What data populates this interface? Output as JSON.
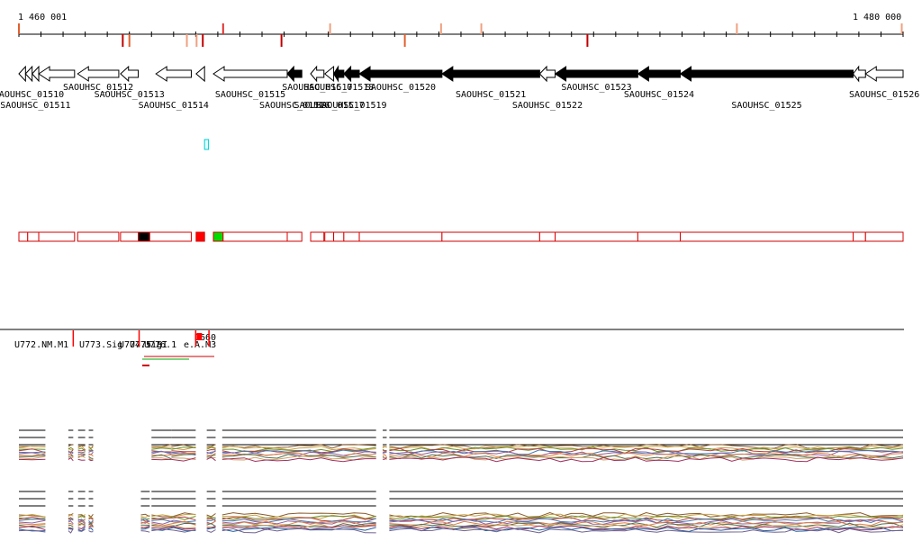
{
  "ruler": {
    "start_label": "1 460 001",
    "end_label": "1 480 000",
    "start": 1460001,
    "end": 1480000
  },
  "colors": {
    "gene_fill": "#000000",
    "gene_outline": "#000000",
    "feature_red": "#d40000",
    "feature_green": "#00dd00",
    "probe_cyan": "#00cccc",
    "marker_red": "#ff0000"
  },
  "ruler_marks": [
    {
      "pos": 1460001,
      "color": "#e06030",
      "dir": "up"
    },
    {
      "pos": 1462350,
      "color": "#c00000",
      "dir": "down"
    },
    {
      "pos": 1462500,
      "color": "#e06030",
      "dir": "down"
    },
    {
      "pos": 1463800,
      "color": "#f0a080",
      "dir": "down"
    },
    {
      "pos": 1464020,
      "color": "#f0a080",
      "dir": "down"
    },
    {
      "pos": 1464160,
      "color": "#c00000",
      "dir": "down"
    },
    {
      "pos": 1464620,
      "color": "#e03030",
      "dir": "up"
    },
    {
      "pos": 1465940,
      "color": "#c00000",
      "dir": "down"
    },
    {
      "pos": 1467040,
      "color": "#f0a080",
      "dir": "up"
    },
    {
      "pos": 1468730,
      "color": "#e06030",
      "dir": "down"
    },
    {
      "pos": 1469550,
      "color": "#f0a080",
      "dir": "up"
    },
    {
      "pos": 1470460,
      "color": "#f0a080",
      "dir": "up"
    },
    {
      "pos": 1472860,
      "color": "#c00000",
      "dir": "down"
    },
    {
      "pos": 1476240,
      "color": "#f0a080",
      "dir": "up"
    },
    {
      "pos": 1479970,
      "color": "#f0a080",
      "dir": "up"
    }
  ],
  "genes": [
    {
      "name": "",
      "start": 1460001,
      "end": 1460150,
      "strand": "+",
      "filled": false
    },
    {
      "name": "SAOUHSC_01510",
      "start": 1460150,
      "end": 1460300,
      "strand": "-",
      "filled": false,
      "label_row": 0
    },
    {
      "name": "SAOUHSC_01511",
      "start": 1460300,
      "end": 1460450,
      "strand": "-",
      "filled": false,
      "label_row": 1
    },
    {
      "name": "",
      "start": 1460450,
      "end": 1461260,
      "strand": "-",
      "filled": false
    },
    {
      "name": "SAOUHSC_01512",
      "start": 1461330,
      "end": 1462260,
      "strand": "-",
      "filled": false,
      "label_row": -1
    },
    {
      "name": "SAOUHSC_01513",
      "start": 1462300,
      "end": 1462700,
      "strand": "-",
      "filled": false,
      "label_row": 0
    },
    {
      "name": "SAOUHSC_01514",
      "start": 1463100,
      "end": 1463900,
      "strand": "-",
      "filled": false,
      "label_row": 1
    },
    {
      "name": "",
      "start": 1464010,
      "end": 1464200,
      "strand": "-",
      "filled": false
    },
    {
      "name": "SAOUHSC_01515",
      "start": 1464400,
      "end": 1466070,
      "strand": "-",
      "filled": false,
      "label_row": 0
    },
    {
      "name": "SAOUHSC_01516",
      "start": 1466070,
      "end": 1466400,
      "strand": "-",
      "filled": true,
      "label_row": 1
    },
    {
      "name": "SAOUHSC_01517",
      "start": 1466600,
      "end": 1466900,
      "strand": "-",
      "filled": false,
      "label_row": -1
    },
    {
      "name": "SAOUHSC_01517",
      "start": 1466920,
      "end": 1467120,
      "strand": "-",
      "filled": false,
      "label_row": 1
    },
    {
      "name": "SAOUHSC_01518",
      "start": 1467120,
      "end": 1467350,
      "strand": "-",
      "filled": true,
      "label_row": -1
    },
    {
      "name": "SAOUHSC_01519",
      "start": 1467350,
      "end": 1467700,
      "strand": "-",
      "filled": true,
      "label_row": 1
    },
    {
      "name": "SAOUHSC_01520",
      "start": 1467700,
      "end": 1469570,
      "strand": "-",
      "filled": true,
      "label_row": -1
    },
    {
      "name": "SAOUHSC_01521",
      "start": 1469570,
      "end": 1471780,
      "strand": "-",
      "filled": true,
      "label_row": 0
    },
    {
      "name": "SAOUHSC_01522",
      "start": 1471780,
      "end": 1472130,
      "strand": "-",
      "filled": false,
      "label_row": 1
    },
    {
      "name": "SAOUHSC_01523",
      "start": 1472130,
      "end": 1474000,
      "strand": "-",
      "filled": true,
      "label_row": -1
    },
    {
      "name": "SAOUHSC_01524",
      "start": 1474000,
      "end": 1474960,
      "strand": "-",
      "filled": true,
      "label_row": 0
    },
    {
      "name": "SAOUHSC_01525",
      "start": 1474960,
      "end": 1478870,
      "strand": "-",
      "filled": true,
      "label_row": 1
    },
    {
      "name": "",
      "start": 1478870,
      "end": 1479150,
      "strand": "-",
      "filled": false
    },
    {
      "name": "SAOUHSC_01526",
      "start": 1479150,
      "end": 1480000,
      "strand": "-",
      "filled": false,
      "label_row": 0
    }
  ],
  "probe": {
    "start": 1464200,
    "end": 1464290
  },
  "feature_track": [
    {
      "start": 1460001,
      "end": 1460200,
      "fill": "none"
    },
    {
      "start": 1460200,
      "end": 1460450,
      "fill": "none"
    },
    {
      "start": 1460450,
      "end": 1461260,
      "fill": "none"
    },
    {
      "start": 1461330,
      "end": 1462260,
      "fill": "none"
    },
    {
      "start": 1462300,
      "end": 1462700,
      "fill": "none"
    },
    {
      "start": 1462700,
      "end": 1462960,
      "fill": "black"
    },
    {
      "start": 1462960,
      "end": 1463900,
      "fill": "none"
    },
    {
      "start": 1464010,
      "end": 1464200,
      "fill": "red"
    },
    {
      "start": 1464400,
      "end": 1464620,
      "fill": "green"
    },
    {
      "start": 1464620,
      "end": 1466070,
      "fill": "none"
    },
    {
      "start": 1466070,
      "end": 1466400,
      "fill": "none"
    },
    {
      "start": 1466600,
      "end": 1466900,
      "fill": "none"
    },
    {
      "start": 1466920,
      "end": 1467120,
      "fill": "none"
    },
    {
      "start": 1467120,
      "end": 1467350,
      "fill": "none"
    },
    {
      "start": 1467350,
      "end": 1467700,
      "fill": "none"
    },
    {
      "start": 1467700,
      "end": 1469570,
      "fill": "none"
    },
    {
      "start": 1469570,
      "end": 1471780,
      "fill": "none"
    },
    {
      "start": 1471780,
      "end": 1472130,
      "fill": "none"
    },
    {
      "start": 1472130,
      "end": 1474000,
      "fill": "none"
    },
    {
      "start": 1474000,
      "end": 1474960,
      "fill": "none"
    },
    {
      "start": 1474960,
      "end": 1478870,
      "fill": "none"
    },
    {
      "start": 1478870,
      "end": 1479150,
      "fill": "none"
    },
    {
      "start": 1479150,
      "end": 1480000,
      "fill": "none"
    }
  ],
  "feature_labels": [
    {
      "text": "U772.NM.M1",
      "pos": 1461230
    },
    {
      "text": "U773.Sig",
      "pos": 1463100
    },
    {
      "text": "U774.sig",
      "pos": 1463100
    },
    {
      "text": "U775.SI",
      "pos": 1463100
    },
    {
      "text": "U776.1",
      "pos": 1463100
    },
    {
      "text": "e.A.M3",
      "pos": 1464200
    },
    {
      "text": "D660",
      "pos": 1464000
    }
  ],
  "expression_segments_top": [
    {
      "start": 1460001,
      "end": 1460600
    },
    {
      "start": 1461120,
      "end": 1461230
    },
    {
      "start": 1461340,
      "end": 1461500
    },
    {
      "start": 1461580,
      "end": 1461680
    },
    {
      "start": 1463000,
      "end": 1463450
    },
    {
      "start": 1463450,
      "end": 1464000
    },
    {
      "start": 1464250,
      "end": 1464450
    },
    {
      "start": 1464600,
      "end": 1468080
    },
    {
      "start": 1468230,
      "end": 1468320
    },
    {
      "start": 1468380,
      "end": 1480000
    }
  ],
  "expression_segments_bottom": [
    {
      "start": 1460001,
      "end": 1460600
    },
    {
      "start": 1461120,
      "end": 1461230
    },
    {
      "start": 1461340,
      "end": 1461500
    },
    {
      "start": 1461580,
      "end": 1461680
    },
    {
      "start": 1462760,
      "end": 1462960
    },
    {
      "start": 1463000,
      "end": 1464000
    },
    {
      "start": 1464250,
      "end": 1464450
    },
    {
      "start": 1464600,
      "end": 1468080
    },
    {
      "start": 1468380,
      "end": 1480000
    }
  ]
}
